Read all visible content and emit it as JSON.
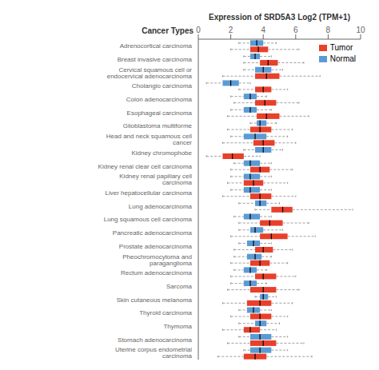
{
  "chart_data": {
    "type": "box",
    "orientation": "horizontal",
    "x_label": "Expression of SRD5A3 Log2 (TPM+1)",
    "y_label": "Cancer Types",
    "xlim": [
      0,
      10
    ],
    "xticks": [
      0,
      2,
      4,
      6,
      8,
      10
    ],
    "grid": false,
    "legend": "upper right",
    "categories": [
      "Adrenocortical carcinoma",
      "Breast invasive carcinoma",
      "Cervical squamous cell or endocervical adenocarcinoma",
      "Cholangio carcinoma",
      "Colon adenocarcinoma",
      "Esophageal carcinoma",
      "Glioblastoma multiforme",
      "Head and neck squamous cell cancer",
      "Kidney chromophobe",
      "Kidney renal clear cell carcinoma",
      "Kidney renal papillary cell carcinoma",
      "Liver hepatocellular carcinoma",
      "Lung adenocarcinoma",
      "Lung squamous cell carcinoma",
      "Pancreatic adenocarcinoma",
      "Prostate adenocarcinoma",
      "Pheochromocytoma and paraganglioma",
      "Rectum adenocarcinoma",
      "Sarcoma",
      "Skin cutaneous melanoma",
      "Thyroid carcinoma",
      "Thymoma",
      "Stomach adenocarcinoma",
      "Uterine corpus endometrial carcinoma"
    ],
    "series": [
      {
        "name": "Tumor",
        "color": "#E8402A",
        "values": [
          [
            2.0,
            3.2,
            3.7,
            4.3,
            6.2
          ],
          [
            2.8,
            3.8,
            4.3,
            4.9,
            6.5
          ],
          [
            1.5,
            3.5,
            4.2,
            5.0,
            7.5
          ],
          [
            2.5,
            3.5,
            4.0,
            4.5,
            5.5
          ],
          [
            2.2,
            3.5,
            4.1,
            4.8,
            6.2
          ],
          [
            1.8,
            3.6,
            4.2,
            5.0,
            6.8
          ],
          [
            1.8,
            3.2,
            3.8,
            4.5,
            5.8
          ],
          [
            1.5,
            3.4,
            4.0,
            4.7,
            6.0
          ],
          [
            0.5,
            1.5,
            2.1,
            2.8,
            3.8
          ],
          [
            2.0,
            3.2,
            3.8,
            4.4,
            5.8
          ],
          [
            1.8,
            2.8,
            3.4,
            4.0,
            5.5
          ],
          [
            1.5,
            3.2,
            3.8,
            4.5,
            6.0
          ],
          [
            3.5,
            4.5,
            5.2,
            5.8,
            9.5
          ],
          [
            2.5,
            3.8,
            4.4,
            5.2,
            6.8
          ],
          [
            2.0,
            3.8,
            4.5,
            5.5,
            7.2
          ],
          [
            2.2,
            3.5,
            4.0,
            4.6,
            5.8
          ],
          [
            2.0,
            3.2,
            3.8,
            4.4,
            5.5
          ],
          [
            2.0,
            3.5,
            4.0,
            4.8,
            6.0
          ],
          [
            1.8,
            3.2,
            4.0,
            4.8,
            6.2
          ],
          [
            1.5,
            3.0,
            3.8,
            4.5,
            5.8
          ],
          [
            2.0,
            3.2,
            3.8,
            4.5,
            5.5
          ],
          [
            1.5,
            2.8,
            3.2,
            3.8,
            4.8
          ],
          [
            1.8,
            3.2,
            4.0,
            4.8,
            6.5
          ],
          [
            1.2,
            2.8,
            3.5,
            4.2,
            7.0
          ]
        ]
      },
      {
        "name": "Normal",
        "color": "#5B9BD5",
        "values": [
          [
            2.5,
            3.2,
            3.6,
            4.0,
            4.8
          ],
          [
            2.8,
            3.2,
            3.5,
            3.8,
            4.5
          ],
          [
            2.8,
            3.5,
            4.0,
            4.5,
            5.2
          ],
          [
            0.5,
            1.5,
            2.0,
            2.5,
            3.2
          ],
          [
            2.0,
            2.8,
            3.2,
            3.6,
            4.2
          ],
          [
            2.0,
            2.8,
            3.2,
            3.6,
            4.5
          ],
          [
            3.2,
            3.6,
            3.8,
            4.2,
            4.8
          ],
          [
            2.0,
            2.8,
            3.5,
            4.2,
            5.5
          ],
          [
            2.8,
            3.5,
            4.0,
            4.5,
            5.2
          ],
          [
            2.2,
            2.8,
            3.2,
            3.8,
            4.5
          ],
          [
            2.0,
            2.8,
            3.2,
            3.8,
            4.5
          ],
          [
            2.0,
            2.8,
            3.2,
            3.8,
            4.5
          ],
          [
            2.5,
            3.5,
            3.8,
            4.2,
            5.0
          ],
          [
            2.2,
            2.8,
            3.2,
            3.8,
            4.5
          ],
          [
            2.5,
            3.2,
            3.5,
            4.0,
            5.2
          ],
          [
            2.5,
            3.0,
            3.4,
            3.8,
            4.5
          ],
          [
            2.2,
            3.0,
            3.5,
            3.9,
            4.5
          ],
          [
            2.2,
            2.8,
            3.2,
            3.6,
            4.2
          ],
          [
            2.0,
            2.8,
            3.2,
            3.6,
            4.2
          ],
          [
            3.5,
            3.8,
            4.0,
            4.3,
            4.8
          ],
          [
            2.5,
            3.0,
            3.4,
            3.8,
            4.5
          ],
          [
            2.5,
            3.5,
            3.8,
            4.2,
            5.0
          ],
          [
            2.5,
            3.2,
            3.8,
            4.5,
            5.5
          ],
          [
            2.8,
            3.2,
            3.8,
            4.5,
            5.5
          ]
        ]
      }
    ]
  }
}
